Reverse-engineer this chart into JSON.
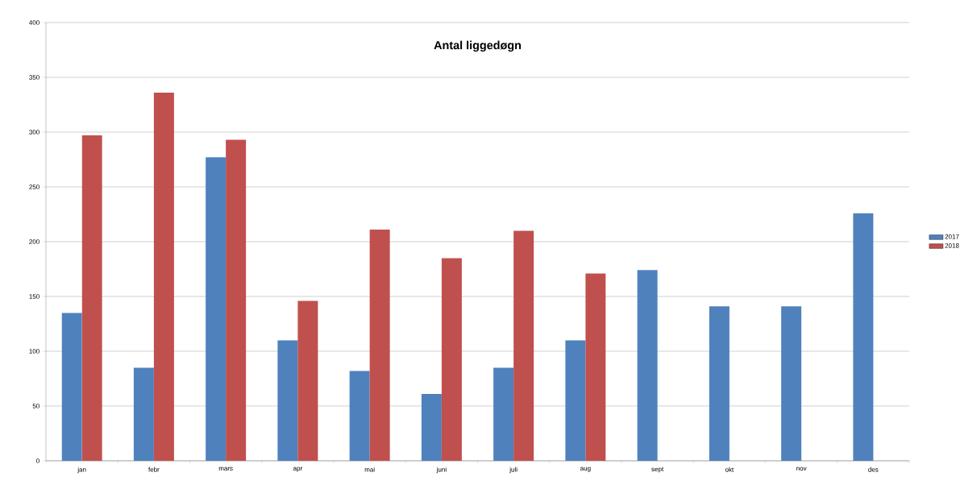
{
  "chart_data": {
    "type": "bar",
    "title": "Antal liggedøgn",
    "categories": [
      "jan",
      "febr",
      "mars",
      "apr",
      "mai",
      "juni",
      "juli",
      "aug",
      "sept",
      "okt",
      "nov",
      "des"
    ],
    "series": [
      {
        "name": "2017",
        "color": "#4f81bd",
        "values": [
          135,
          85,
          277,
          110,
          82,
          61,
          85,
          110,
          174,
          141,
          141,
          226
        ]
      },
      {
        "name": "2018",
        "color": "#c0504d",
        "values": [
          297,
          336,
          293,
          146,
          211,
          185,
          210,
          171,
          null,
          null,
          null,
          null
        ]
      }
    ],
    "ylim": [
      0,
      400
    ],
    "yticks": [
      0,
      50,
      100,
      150,
      200,
      250,
      300,
      350,
      400
    ],
    "grid": "y",
    "legend": "right"
  }
}
